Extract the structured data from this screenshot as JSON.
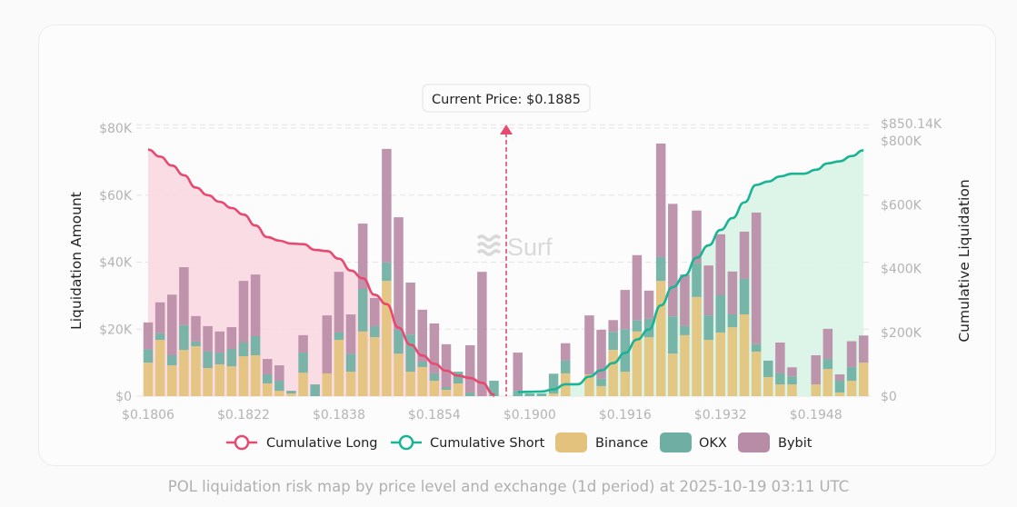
{
  "caption": "POL liquidation risk map by price level and exchange (1d period) at 2025-10-19 03:11 UTC",
  "watermark": "Surf",
  "colors": {
    "binance": "#e2c27c",
    "okx": "#6fafa3",
    "bybit": "#b88ca6",
    "long": "#e64a70",
    "short": "#1ab394",
    "long_fill": "#f8d8e1",
    "short_fill": "#d9f4e6"
  },
  "chart_data": {
    "type": "bar",
    "title": "",
    "xlabel": "",
    "ylabel": "Liquidation Amount",
    "y2label": "Cumulative Liquidation",
    "ylim": [
      0,
      80000
    ],
    "y2lim": [
      0,
      850140
    ],
    "y_ticks": [
      "$0",
      "$20K",
      "$40K",
      "$60K",
      "$80K"
    ],
    "y2_ticks": [
      "$0",
      "$200K",
      "$400K",
      "$600K",
      "$800K",
      "$850.14K"
    ],
    "x_tick_labels": [
      "$0.1806",
      "$0.1822",
      "$0.1838",
      "$0.1854",
      "$0.1900",
      "$0.1916",
      "$0.1932",
      "$0.1948"
    ],
    "grid": true,
    "legend_position": "bottom",
    "legend": [
      "Cumulative Long",
      "Cumulative Short",
      "Binance",
      "OKX",
      "Bybit"
    ],
    "current_price_label": "Current Price: $0.1885",
    "current_price_index": 30,
    "categories": [
      "0.1806",
      "0.1808",
      "0.1810",
      "0.1812",
      "0.1814",
      "0.1816",
      "0.1818",
      "0.1820",
      "0.1822",
      "0.1824",
      "0.1826",
      "0.1828",
      "0.1830",
      "0.1832",
      "0.1834",
      "0.1836",
      "0.1838",
      "0.1840",
      "0.1842",
      "0.1844",
      "0.1846",
      "0.1848",
      "0.1850",
      "0.1852",
      "0.1854",
      "0.1856",
      "0.1858",
      "0.1860",
      "0.1862",
      "0.1864",
      "0.1885",
      "0.1898",
      "0.1900",
      "0.1902",
      "0.1904",
      "0.1906",
      "0.1908",
      "0.1910",
      "0.1912",
      "0.1914",
      "0.1916",
      "0.1918",
      "0.1920",
      "0.1922",
      "0.1924",
      "0.1926",
      "0.1928",
      "0.1930",
      "0.1932",
      "0.1934",
      "0.1936",
      "0.1938",
      "0.1940",
      "0.1942",
      "0.1944",
      "0.1946",
      "0.1948",
      "0.1950",
      "0.1952",
      "0.1954",
      "0.1956"
    ],
    "series": [
      {
        "name": "Binance",
        "values": [
          10000,
          16800,
          9200,
          13800,
          14900,
          8400,
          9500,
          8900,
          11900,
          12200,
          3800,
          1600,
          800,
          7000,
          0,
          6800,
          16800,
          7300,
          19300,
          17600,
          34400,
          12700,
          7300,
          8700,
          4600,
          1900,
          3800,
          0,
          0,
          0,
          0,
          0,
          0,
          0,
          800,
          6800,
          0,
          6500,
          3000,
          13800,
          7300,
          19300,
          17600,
          34400,
          12700,
          18200,
          29600,
          16800,
          19000,
          20600,
          24400,
          13300,
          5700,
          3500,
          3500,
          0,
          3500,
          8100,
          1100,
          4600,
          10000
        ]
      },
      {
        "name": "OKX",
        "values": [
          4000,
          2000,
          3000,
          7400,
          1400,
          4900,
          3500,
          5200,
          4100,
          5700,
          2700,
          3000,
          800,
          6000,
          3500,
          0,
          2200,
          5400,
          12700,
          3300,
          5500,
          7100,
          11100,
          1600,
          2200,
          800,
          3500,
          1100,
          0,
          4600,
          0,
          1600,
          800,
          800,
          5900,
          3800,
          0,
          0,
          2200,
          5400,
          12700,
          3300,
          5500,
          7100,
          11100,
          2700,
          10100,
          7300,
          11100,
          3800,
          10600,
          2200,
          4900,
          3300,
          2400,
          0,
          0,
          3000,
          3500,
          4100,
          0
        ]
      },
      {
        "name": "Bybit",
        "values": [
          8000,
          9200,
          18100,
          17300,
          7600,
          7600,
          6300,
          6500,
          18400,
          18400,
          4600,
          4600,
          0,
          5200,
          0,
          17300,
          18100,
          11700,
          19500,
          8400,
          33900,
          33600,
          15500,
          15500,
          14900,
          12800,
          0,
          14100,
          37100,
          0,
          0,
          11400,
          0,
          0,
          0,
          5200,
          0,
          17600,
          14600,
          3500,
          11700,
          19500,
          8400,
          33900,
          33600,
          15400,
          15700,
          14900,
          18200,
          12800,
          14100,
          39300,
          0,
          9200,
          2700,
          0,
          8700,
          9000,
          1900,
          7700,
          8100
        ]
      }
    ]
  }
}
